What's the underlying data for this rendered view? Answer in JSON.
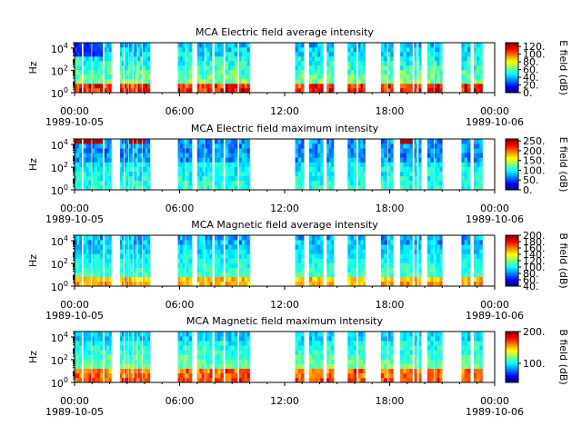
{
  "chart_data": [
    {
      "type": "heatmap",
      "title": "MCA  Electric field average intensity",
      "ylabel": "Hz",
      "yscale": "log",
      "yticks": [
        "10^0",
        "10^2",
        "10^4"
      ],
      "ylim": [
        1,
        30000
      ],
      "xticks": [
        "00:00",
        "06:00",
        "12:00",
        "18:00",
        "00:00"
      ],
      "xdates": [
        "1989-10-05",
        "1989-10-06"
      ],
      "xlim": [
        "1989-10-05 00:00",
        "1989-10-06 00:00"
      ],
      "colorbar_label": "E field (dB)",
      "colorbar_ticks": [
        "0.",
        "20.",
        "40.",
        "60.",
        "80.",
        "100.",
        "120."
      ],
      "clim": [
        0,
        130
      ],
      "colormap": "jet",
      "profile": "electric-average"
    },
    {
      "type": "heatmap",
      "title": "MCA  Electric field maximum intensity",
      "ylabel": "Hz",
      "yscale": "log",
      "yticks": [
        "10^0",
        "10^2",
        "10^4"
      ],
      "ylim": [
        1,
        30000
      ],
      "xticks": [
        "00:00",
        "06:00",
        "12:00",
        "18:00",
        "00:00"
      ],
      "xdates": [
        "1989-10-05",
        "1989-10-06"
      ],
      "xlim": [
        "1989-10-05 00:00",
        "1989-10-06 00:00"
      ],
      "colorbar_label": "E field (dB)",
      "colorbar_ticks": [
        "0.",
        "50.",
        "100.",
        "150.",
        "200.",
        "250."
      ],
      "clim": [
        0,
        260
      ],
      "colormap": "jet",
      "profile": "electric-maximum"
    },
    {
      "type": "heatmap",
      "title": "MCA  Magnetic field average intensity",
      "ylabel": "Hz",
      "yscale": "log",
      "yticks": [
        "10^0",
        "10^2",
        "10^4"
      ],
      "ylim": [
        1,
        30000
      ],
      "xticks": [
        "00:00",
        "06:00",
        "12:00",
        "18:00",
        "00:00"
      ],
      "xdates": [
        "1989-10-05",
        "1989-10-06"
      ],
      "xlim": [
        "1989-10-05 00:00",
        "1989-10-06 00:00"
      ],
      "colorbar_label": "B field (dB)",
      "colorbar_ticks": [
        "40.",
        "60.",
        "80.",
        "100.",
        "120.",
        "140.",
        "160.",
        "180.",
        "200."
      ],
      "clim": [
        40,
        200
      ],
      "colormap": "jet",
      "profile": "magnetic-average"
    },
    {
      "type": "heatmap",
      "title": "MCA  Magnetic field maximum intensity",
      "ylabel": "Hz",
      "yscale": "log",
      "yticks": [
        "10^0",
        "10^2",
        "10^4"
      ],
      "ylim": [
        1,
        30000
      ],
      "xticks": [
        "00:00",
        "06:00",
        "12:00",
        "18:00",
        "00:00"
      ],
      "xdates": [
        "1989-10-05",
        "1989-10-06"
      ],
      "xlim": [
        "1989-10-05 00:00",
        "1989-10-06 00:00"
      ],
      "colorbar_label": "B field (dB)",
      "colorbar_ticks": [
        "100.",
        "200."
      ],
      "clim": [
        40,
        200
      ],
      "colormap": "jet",
      "profile": "magnetic-maximum"
    }
  ],
  "data_intervals_hours": [
    [
      0.0,
      0.4
    ],
    [
      0.5,
      0.95
    ],
    [
      1.0,
      1.6
    ],
    [
      1.7,
      2.1
    ],
    [
      2.6,
      2.8
    ],
    [
      2.85,
      3.05
    ],
    [
      3.1,
      3.3
    ],
    [
      3.35,
      3.55
    ],
    [
      3.6,
      3.85
    ],
    [
      3.9,
      4.3
    ],
    [
      5.9,
      6.3
    ],
    [
      6.35,
      6.7
    ],
    [
      7.0,
      7.4
    ],
    [
      7.45,
      7.85
    ],
    [
      8.0,
      8.5
    ],
    [
      8.6,
      9.3
    ],
    [
      9.4,
      10.0
    ],
    [
      12.6,
      13.1
    ],
    [
      13.4,
      14.2
    ],
    [
      14.4,
      14.8
    ],
    [
      15.6,
      16.1
    ],
    [
      16.2,
      16.6
    ],
    [
      17.5,
      17.85
    ],
    [
      17.9,
      18.2
    ],
    [
      18.6,
      19.3
    ],
    [
      19.4,
      19.55
    ],
    [
      19.65,
      19.8
    ],
    [
      20.15,
      20.5
    ],
    [
      20.55,
      21.0
    ],
    [
      22.1,
      22.6
    ],
    [
      22.8,
      23.3
    ]
  ]
}
